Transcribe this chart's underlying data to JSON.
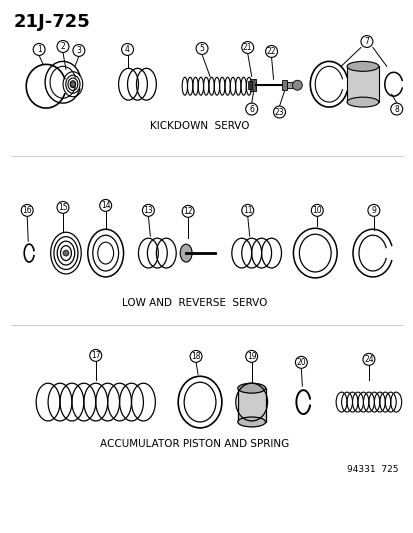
{
  "title": "21J-725",
  "bg_color": "#ffffff",
  "line_color": "#000000",
  "section1_label": "KICKDOWN  SERVO",
  "section2_label": "LOW AND  REVERSE  SERVO",
  "section3_label": "ACCUMULATOR PISTON AND SPRING",
  "footer": "94331  725",
  "part_numbers": {
    "sec1": [
      1,
      2,
      3,
      4,
      5,
      21,
      22,
      6,
      23,
      7,
      8
    ],
    "sec2": [
      16,
      15,
      14,
      13,
      12,
      11,
      10,
      9
    ],
    "sec3": [
      17,
      18,
      19,
      20,
      24
    ]
  }
}
